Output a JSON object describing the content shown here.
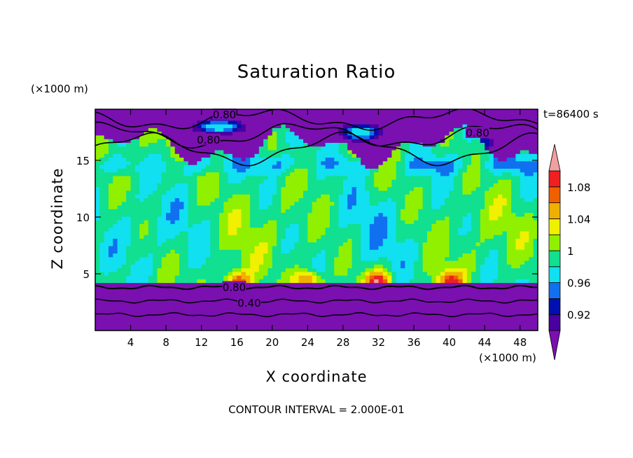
{
  "chart_data": {
    "type": "heatmap",
    "title": "Saturation Ratio",
    "xlabel": "X coordinate",
    "ylabel": "Z coordinate",
    "x_unit": "(×1000 m)",
    "y_unit": "(×1000 m)",
    "time_label": "t=86400 s",
    "footer": "CONTOUR INTERVAL = 2.000E-01",
    "xlim": [
      0,
      50
    ],
    "ylim": [
      0,
      19.5
    ],
    "x_ticks": [
      4,
      8,
      12,
      16,
      20,
      24,
      28,
      32,
      36,
      40,
      44,
      48
    ],
    "y_ticks": [
      5,
      10,
      15
    ],
    "colorbar": {
      "levels": [
        0.9,
        0.92,
        0.94,
        0.96,
        0.98,
        1.0,
        1.02,
        1.04,
        1.06,
        1.08,
        1.1
      ],
      "labels": [
        "0.92",
        "0.96",
        "1",
        "1.04",
        "1.08"
      ],
      "label_values": [
        0.92,
        0.96,
        1.0,
        1.04,
        1.08
      ],
      "colors": [
        "#4a00a0",
        "#0010b0",
        "#1070f0",
        "#10e0f0",
        "#10e090",
        "#90f000",
        "#f0f000",
        "#f0b000",
        "#f06000",
        "#f02020"
      ],
      "under_color": "#7a10b0",
      "over_color": "#f0a0a0"
    },
    "contour_labels": [
      {
        "text": "0.80",
        "x": 15.7,
        "z": 3.8
      },
      {
        "text": "0.40",
        "x": 17.4,
        "z": 2.4
      },
      {
        "text": "0.80",
        "x": 12.8,
        "z": 16.8
      },
      {
        "text": "0.80",
        "x": 43.2,
        "z": 17.4
      },
      {
        "text": "0.80",
        "x": 14.6,
        "z": 19.0
      }
    ],
    "bands": [
      {
        "level": "lower_dry",
        "z_top": 4.2,
        "color": "#7a10b0"
      },
      {
        "level": "cloud_layer",
        "z_bottom": 4.2,
        "z_top": 15.5,
        "color": "#10e090"
      },
      {
        "level": "upper_dry",
        "z_bottom": 16.0,
        "color": "#7a10b0"
      }
    ]
  }
}
